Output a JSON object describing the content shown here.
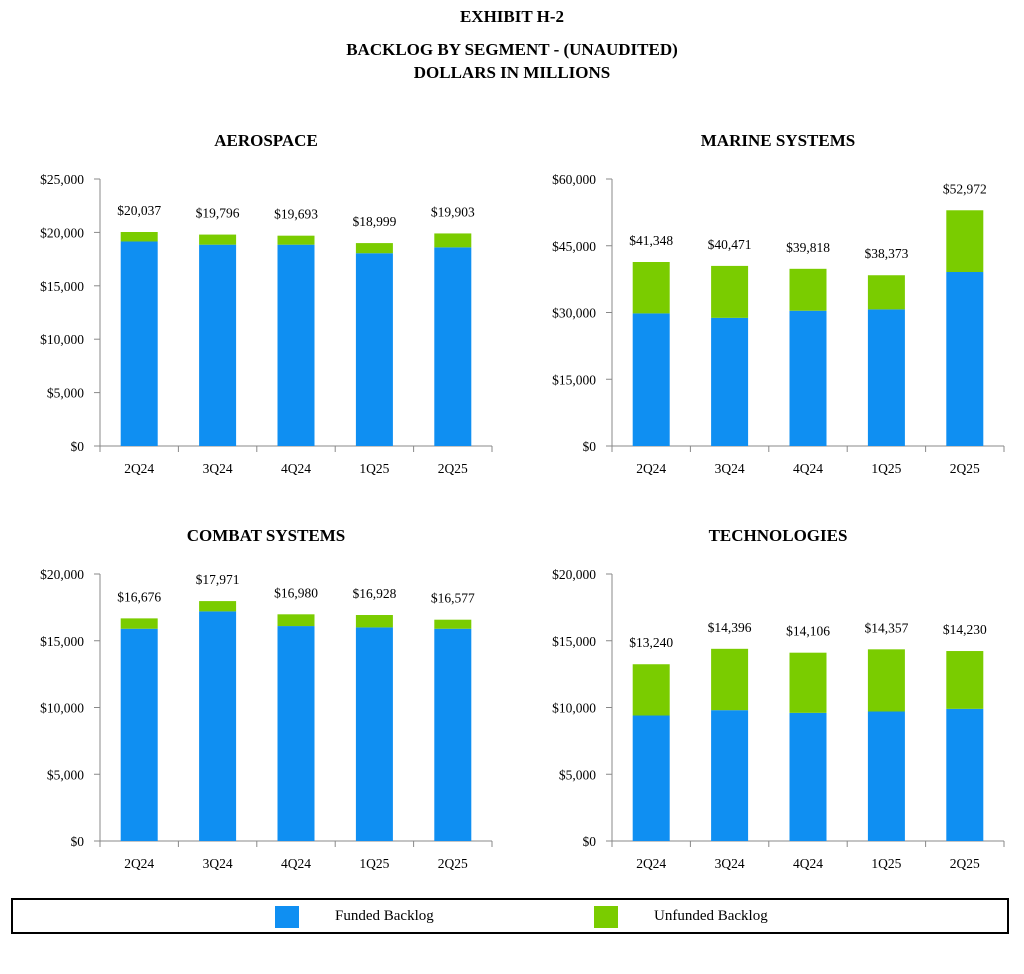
{
  "header": {
    "exhibit": "EXHIBIT H-2",
    "subtitle1": "BACKLOG BY SEGMENT - (UNAUDITED)",
    "subtitle2": "DOLLARS IN MILLIONS"
  },
  "colors": {
    "funded": "#0f8ff2",
    "unfunded": "#7acc00",
    "axis": "#888888"
  },
  "legend": {
    "funded_label": "Funded Backlog",
    "unfunded_label": "Unfunded Backlog"
  },
  "chart_data": [
    {
      "type": "bar",
      "stacked": true,
      "title": "AEROSPACE",
      "categories": [
        "2Q24",
        "3Q24",
        "4Q24",
        "1Q25",
        "2Q25"
      ],
      "ylim": [
        0,
        25000
      ],
      "yticks": [
        0,
        5000,
        10000,
        15000,
        20000,
        25000
      ],
      "ytick_labels": [
        "$0",
        "$5,000",
        "$10,000",
        "$15,000",
        "$20,000",
        "$25,000"
      ],
      "series": [
        {
          "name": "Funded Backlog",
          "values": [
            19150,
            18850,
            18850,
            18050,
            18600
          ]
        },
        {
          "name": "Unfunded Backlog",
          "values": [
            887,
            946,
            843,
            949,
            1303
          ]
        }
      ],
      "totals": [
        20037,
        19796,
        19693,
        18999,
        19903
      ],
      "total_labels": [
        "$20,037",
        "$19,796",
        "$19,693",
        "$18,999",
        "$19,903"
      ]
    },
    {
      "type": "bar",
      "stacked": true,
      "title": "MARINE SYSTEMS",
      "categories": [
        "2Q24",
        "3Q24",
        "4Q24",
        "1Q25",
        "2Q25"
      ],
      "ylim": [
        0,
        60000
      ],
      "yticks": [
        0,
        15000,
        30000,
        45000,
        60000
      ],
      "ytick_labels": [
        "$0",
        "$15,000",
        "$30,000",
        "$45,000",
        "$60,000"
      ],
      "series": [
        {
          "name": "Funded Backlog",
          "values": [
            29800,
            28800,
            30400,
            30700,
            39100
          ]
        },
        {
          "name": "Unfunded Backlog",
          "values": [
            11548,
            11671,
            9418,
            7673,
            13872
          ]
        }
      ],
      "totals": [
        41348,
        40471,
        39818,
        38373,
        52972
      ],
      "total_labels": [
        "$41,348",
        "$40,471",
        "$39,818",
        "$38,373",
        "$52,972"
      ]
    },
    {
      "type": "bar",
      "stacked": true,
      "title": "COMBAT SYSTEMS",
      "categories": [
        "2Q24",
        "3Q24",
        "4Q24",
        "1Q25",
        "2Q25"
      ],
      "ylim": [
        0,
        20000
      ],
      "yticks": [
        0,
        5000,
        10000,
        15000,
        20000
      ],
      "ytick_labels": [
        "$0",
        "$5,000",
        "$10,000",
        "$15,000",
        "$20,000"
      ],
      "series": [
        {
          "name": "Funded Backlog",
          "values": [
            15900,
            17200,
            16100,
            16000,
            15900
          ]
        },
        {
          "name": "Unfunded Backlog",
          "values": [
            776,
            771,
            880,
            928,
            677
          ]
        }
      ],
      "totals": [
        16676,
        17971,
        16980,
        16928,
        16577
      ],
      "total_labels": [
        "$16,676",
        "$17,971",
        "$16,980",
        "$16,928",
        "$16,577"
      ]
    },
    {
      "type": "bar",
      "stacked": true,
      "title": "TECHNOLOGIES",
      "categories": [
        "2Q24",
        "3Q24",
        "4Q24",
        "1Q25",
        "2Q25"
      ],
      "ylim": [
        0,
        20000
      ],
      "yticks": [
        0,
        5000,
        10000,
        15000,
        20000
      ],
      "ytick_labels": [
        "$0",
        "$5,000",
        "$10,000",
        "$15,000",
        "$20,000"
      ],
      "series": [
        {
          "name": "Funded Backlog",
          "values": [
            9400,
            9800,
            9600,
            9700,
            9900
          ]
        },
        {
          "name": "Unfunded Backlog",
          "values": [
            3840,
            4596,
            4506,
            4657,
            4330
          ]
        }
      ],
      "totals": [
        13240,
        14396,
        14106,
        14357,
        14230
      ],
      "total_labels": [
        "$13,240",
        "$14,396",
        "$14,106",
        "$14,357",
        "$14,230"
      ]
    }
  ]
}
